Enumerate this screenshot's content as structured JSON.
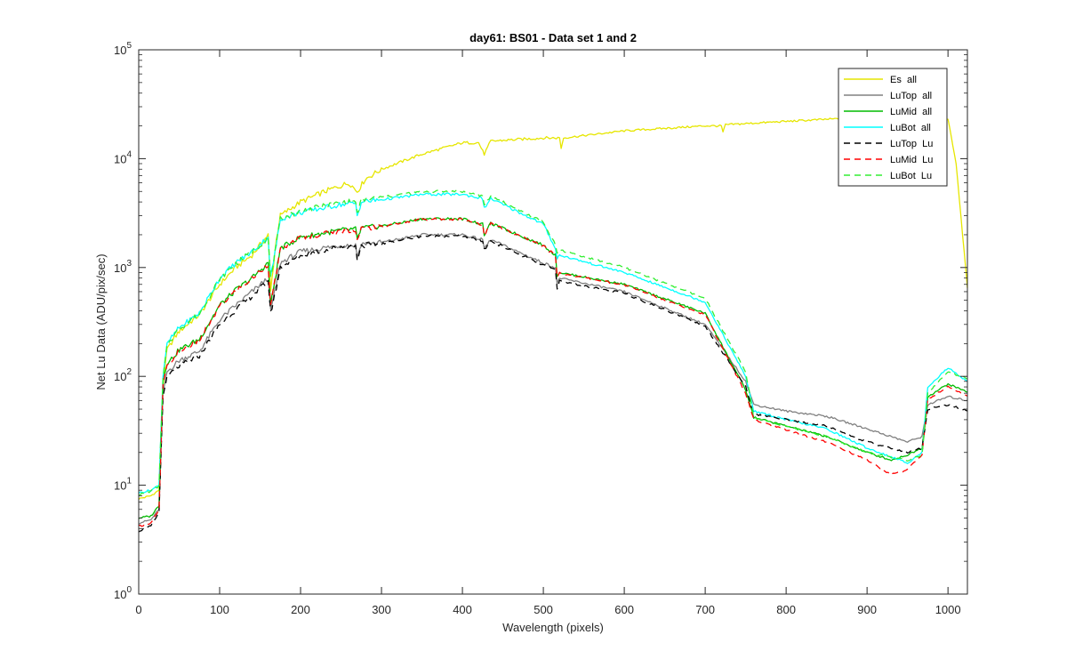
{
  "chart_data": {
    "type": "line",
    "title": "day61: BS01 - Data set 1 and 2",
    "xlabel": "Wavelength (pixels)",
    "ylabel": "Net Lu Data (ADU/pix/sec)",
    "xlim": [
      0,
      1024
    ],
    "ylim": [
      1,
      100000
    ],
    "yscale": "log",
    "grid": false,
    "legend_location": "top-right",
    "x_ticks": [
      "0",
      "100",
      "200",
      "300",
      "400",
      "500",
      "600",
      "700",
      "800",
      "900",
      "1000"
    ],
    "y_ticks": [
      {
        "base": "10",
        "exp": "0"
      },
      {
        "base": "10",
        "exp": "1"
      },
      {
        "base": "10",
        "exp": "2"
      },
      {
        "base": "10",
        "exp": "3"
      },
      {
        "base": "10",
        "exp": "4"
      },
      {
        "base": "10",
        "exp": "5"
      }
    ],
    "series": [
      {
        "name": "Es  all",
        "color": "#E6E600",
        "dash": "solid",
        "points": [
          [
            0,
            7.5
          ],
          [
            15,
            8
          ],
          [
            25,
            9
          ],
          [
            30,
            80
          ],
          [
            35,
            180
          ],
          [
            50,
            260
          ],
          [
            75,
            370
          ],
          [
            100,
            700
          ],
          [
            120,
            1000
          ],
          [
            140,
            1300
          ],
          [
            160,
            2000
          ],
          [
            163,
            600
          ],
          [
            170,
            1800
          ],
          [
            175,
            3000
          ],
          [
            200,
            4000
          ],
          [
            230,
            5000
          ],
          [
            260,
            6000
          ],
          [
            270,
            5000
          ],
          [
            280,
            6500
          ],
          [
            300,
            8000
          ],
          [
            350,
            11000
          ],
          [
            400,
            14000
          ],
          [
            420,
            14000
          ],
          [
            427,
            11000
          ],
          [
            435,
            14500
          ],
          [
            500,
            15500
          ],
          [
            520,
            15500
          ],
          [
            522,
            12500
          ],
          [
            525,
            15500
          ],
          [
            600,
            18000
          ],
          [
            700,
            20000
          ],
          [
            720,
            20000
          ],
          [
            722,
            17500
          ],
          [
            725,
            20500
          ],
          [
            800,
            22000
          ],
          [
            900,
            24000
          ],
          [
            1000,
            23000
          ],
          [
            1010,
            9000
          ],
          [
            1024,
            650
          ]
        ]
      },
      {
        "name": "LuTop  all",
        "color": "#808080",
        "dash": "solid",
        "points": [
          [
            0,
            4.5
          ],
          [
            15,
            4.8
          ],
          [
            25,
            6
          ],
          [
            30,
            70
          ],
          [
            35,
            110
          ],
          [
            50,
            140
          ],
          [
            75,
            170
          ],
          [
            100,
            330
          ],
          [
            120,
            450
          ],
          [
            140,
            600
          ],
          [
            160,
            800
          ],
          [
            163,
            400
          ],
          [
            170,
            700
          ],
          [
            175,
            1100
          ],
          [
            200,
            1400
          ],
          [
            250,
            1600
          ],
          [
            268,
            1600
          ],
          [
            270,
            1250
          ],
          [
            275,
            1650
          ],
          [
            300,
            1700
          ],
          [
            350,
            2000
          ],
          [
            400,
            2000
          ],
          [
            425,
            1800
          ],
          [
            427,
            1500
          ],
          [
            435,
            1800
          ],
          [
            500,
            1100
          ],
          [
            515,
            1000
          ],
          [
            517,
            700
          ],
          [
            520,
            800
          ],
          [
            600,
            600
          ],
          [
            700,
            300
          ],
          [
            750,
            90
          ],
          [
            760,
            55
          ],
          [
            800,
            48
          ],
          [
            850,
            43
          ],
          [
            900,
            33
          ],
          [
            950,
            25
          ],
          [
            968,
            28
          ],
          [
            975,
            55
          ],
          [
            1000,
            65
          ],
          [
            1024,
            60
          ]
        ]
      },
      {
        "name": "LuMid  all",
        "color": "#00BB00",
        "dash": "solid",
        "points": [
          [
            0,
            5
          ],
          [
            15,
            5.2
          ],
          [
            25,
            6.5
          ],
          [
            30,
            90
          ],
          [
            35,
            130
          ],
          [
            50,
            175
          ],
          [
            75,
            220
          ],
          [
            100,
            450
          ],
          [
            120,
            620
          ],
          [
            140,
            800
          ],
          [
            160,
            1100
          ],
          [
            163,
            450
          ],
          [
            170,
            900
          ],
          [
            175,
            1500
          ],
          [
            200,
            1900
          ],
          [
            250,
            2200
          ],
          [
            268,
            2250
          ],
          [
            270,
            1800
          ],
          [
            275,
            2300
          ],
          [
            300,
            2400
          ],
          [
            350,
            2800
          ],
          [
            400,
            2800
          ],
          [
            425,
            2500
          ],
          [
            427,
            2000
          ],
          [
            435,
            2550
          ],
          [
            500,
            1600
          ],
          [
            515,
            1300
          ],
          [
            517,
            850
          ],
          [
            520,
            900
          ],
          [
            600,
            700
          ],
          [
            700,
            380
          ],
          [
            750,
            75
          ],
          [
            760,
            42
          ],
          [
            800,
            35
          ],
          [
            850,
            28
          ],
          [
            900,
            20
          ],
          [
            930,
            17
          ],
          [
            950,
            19
          ],
          [
            968,
            22
          ],
          [
            975,
            65
          ],
          [
            1000,
            85
          ],
          [
            1024,
            72
          ]
        ]
      },
      {
        "name": "LuBot  all",
        "color": "#00FFFF",
        "dash": "solid",
        "points": [
          [
            0,
            8.5
          ],
          [
            15,
            9
          ],
          [
            25,
            10
          ],
          [
            30,
            100
          ],
          [
            35,
            200
          ],
          [
            50,
            280
          ],
          [
            75,
            380
          ],
          [
            100,
            800
          ],
          [
            120,
            1100
          ],
          [
            140,
            1400
          ],
          [
            160,
            1900
          ],
          [
            163,
            800
          ],
          [
            170,
            1600
          ],
          [
            175,
            2800
          ],
          [
            200,
            3200
          ],
          [
            250,
            3800
          ],
          [
            268,
            3900
          ],
          [
            270,
            3000
          ],
          [
            275,
            4000
          ],
          [
            300,
            4200
          ],
          [
            350,
            4700
          ],
          [
            400,
            4700
          ],
          [
            425,
            4300
          ],
          [
            427,
            3500
          ],
          [
            435,
            4300
          ],
          [
            500,
            2500
          ],
          [
            515,
            1500
          ],
          [
            517,
            1200
          ],
          [
            520,
            1300
          ],
          [
            600,
            900
          ],
          [
            700,
            480
          ],
          [
            750,
            100
          ],
          [
            760,
            48
          ],
          [
            800,
            40
          ],
          [
            850,
            33
          ],
          [
            900,
            22
          ],
          [
            950,
            16
          ],
          [
            968,
            20
          ],
          [
            975,
            80
          ],
          [
            1000,
            120
          ],
          [
            1024,
            90
          ]
        ]
      },
      {
        "name": "LuTop  Lu",
        "color": "#000000",
        "dash": "dashed",
        "points": [
          [
            0,
            3.8
          ],
          [
            15,
            4.2
          ],
          [
            25,
            5.5
          ],
          [
            30,
            65
          ],
          [
            35,
            100
          ],
          [
            50,
            125
          ],
          [
            75,
            155
          ],
          [
            100,
            300
          ],
          [
            120,
            410
          ],
          [
            140,
            550
          ],
          [
            160,
            750
          ],
          [
            163,
            380
          ],
          [
            170,
            650
          ],
          [
            175,
            1000
          ],
          [
            200,
            1300
          ],
          [
            250,
            1550
          ],
          [
            268,
            1550
          ],
          [
            270,
            1200
          ],
          [
            275,
            1600
          ],
          [
            300,
            1650
          ],
          [
            350,
            1950
          ],
          [
            400,
            1950
          ],
          [
            425,
            1750
          ],
          [
            427,
            1450
          ],
          [
            435,
            1750
          ],
          [
            500,
            1050
          ],
          [
            515,
            950
          ],
          [
            517,
            650
          ],
          [
            520,
            750
          ],
          [
            600,
            580
          ],
          [
            700,
            290
          ],
          [
            750,
            80
          ],
          [
            760,
            45
          ],
          [
            800,
            40
          ],
          [
            850,
            35
          ],
          [
            900,
            25
          ],
          [
            950,
            20
          ],
          [
            968,
            22
          ],
          [
            975,
            50
          ],
          [
            1000,
            55
          ],
          [
            1024,
            48
          ]
        ]
      },
      {
        "name": "LuMid  Lu",
        "color": "#FF0000",
        "dash": "dashed",
        "points": [
          [
            0,
            4.2
          ],
          [
            15,
            4.5
          ],
          [
            25,
            5.8
          ],
          [
            30,
            85
          ],
          [
            35,
            125
          ],
          [
            50,
            170
          ],
          [
            75,
            215
          ],
          [
            100,
            440
          ],
          [
            120,
            610
          ],
          [
            140,
            790
          ],
          [
            160,
            1080
          ],
          [
            163,
            440
          ],
          [
            170,
            880
          ],
          [
            175,
            1480
          ],
          [
            200,
            1880
          ],
          [
            250,
            2180
          ],
          [
            268,
            2220
          ],
          [
            270,
            1780
          ],
          [
            275,
            2280
          ],
          [
            300,
            2380
          ],
          [
            350,
            2780
          ],
          [
            400,
            2780
          ],
          [
            425,
            2480
          ],
          [
            427,
            1980
          ],
          [
            435,
            2530
          ],
          [
            500,
            1580
          ],
          [
            515,
            1280
          ],
          [
            517,
            840
          ],
          [
            520,
            890
          ],
          [
            600,
            690
          ],
          [
            700,
            370
          ],
          [
            750,
            70
          ],
          [
            760,
            40
          ],
          [
            800,
            32
          ],
          [
            850,
            25
          ],
          [
            900,
            17
          ],
          [
            930,
            12.5
          ],
          [
            950,
            14
          ],
          [
            968,
            19
          ],
          [
            975,
            62
          ],
          [
            1000,
            80
          ],
          [
            1024,
            66
          ]
        ]
      },
      {
        "name": "LuBot  Lu",
        "color": "#33EE33",
        "dash": "dashed",
        "points": [
          [
            0,
            8.2
          ],
          [
            15,
            8.8
          ],
          [
            25,
            9.8
          ],
          [
            30,
            95
          ],
          [
            35,
            195
          ],
          [
            50,
            275
          ],
          [
            75,
            375
          ],
          [
            100,
            790
          ],
          [
            120,
            1090
          ],
          [
            140,
            1390
          ],
          [
            160,
            1890
          ],
          [
            163,
            790
          ],
          [
            170,
            1590
          ],
          [
            175,
            2790
          ],
          [
            200,
            3300
          ],
          [
            250,
            3950
          ],
          [
            268,
            4050
          ],
          [
            270,
            3100
          ],
          [
            275,
            4150
          ],
          [
            300,
            4400
          ],
          [
            350,
            5000
          ],
          [
            400,
            5000
          ],
          [
            425,
            4550
          ],
          [
            427,
            3650
          ],
          [
            435,
            4550
          ],
          [
            500,
            2600
          ],
          [
            515,
            1600
          ],
          [
            517,
            1350
          ],
          [
            520,
            1450
          ],
          [
            600,
            1000
          ],
          [
            700,
            520
          ],
          [
            750,
            110
          ],
          [
            760,
            42
          ],
          [
            800,
            35
          ],
          [
            850,
            28
          ],
          [
            900,
            20
          ],
          [
            950,
            17
          ],
          [
            968,
            19
          ],
          [
            975,
            70
          ],
          [
            1000,
            110
          ],
          [
            1024,
            95
          ]
        ]
      }
    ]
  }
}
